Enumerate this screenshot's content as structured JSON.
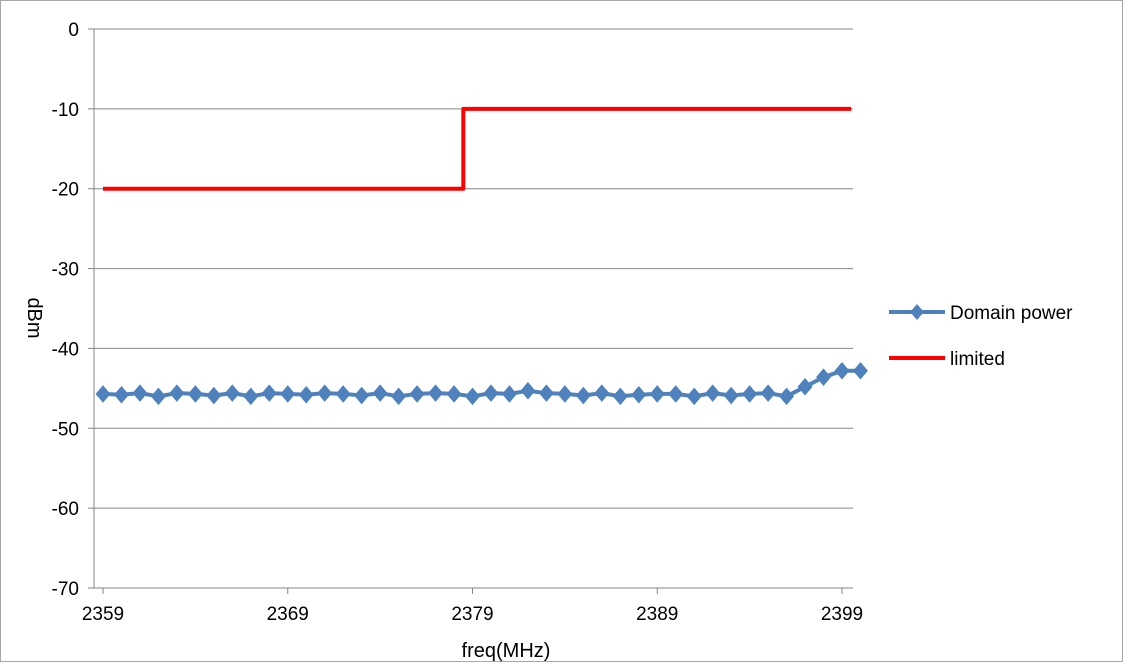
{
  "chart_data": {
    "type": "line",
    "title": "",
    "xlabel": "freq(MHz)",
    "ylabel": "dBm",
    "xlim": [
      2359,
      2399.5
    ],
    "ylim": [
      -70,
      0
    ],
    "x_ticks": [
      2359,
      2369,
      2379,
      2389,
      2399
    ],
    "y_ticks": [
      0,
      -10,
      -20,
      -30,
      -40,
      -50,
      -60,
      -70
    ],
    "grid": "horizontal",
    "legend_position": "right",
    "series": [
      {
        "name": "Domain power",
        "color": "#4f81bd",
        "marker": "diamond",
        "x": [
          2359,
          2360,
          2361,
          2362,
          2363,
          2364,
          2365,
          2366,
          2367,
          2368,
          2369,
          2370,
          2371,
          2372,
          2373,
          2374,
          2375,
          2376,
          2377,
          2378,
          2379,
          2380,
          2381,
          2382,
          2383,
          2384,
          2385,
          2386,
          2387,
          2388,
          2389,
          2390,
          2391,
          2392,
          2393,
          2394,
          2395,
          2396,
          2397,
          2398,
          2399,
          2400
        ],
        "values": [
          -45.7,
          -45.8,
          -45.6,
          -46.0,
          -45.6,
          -45.7,
          -45.9,
          -45.6,
          -46.0,
          -45.6,
          -45.7,
          -45.8,
          -45.6,
          -45.7,
          -45.9,
          -45.6,
          -46.0,
          -45.7,
          -45.6,
          -45.7,
          -46.0,
          -45.6,
          -45.7,
          -45.3,
          -45.6,
          -45.7,
          -45.9,
          -45.6,
          -46.0,
          -45.8,
          -45.7,
          -45.7,
          -46.0,
          -45.6,
          -45.9,
          -45.7,
          -45.6,
          -46.0,
          -44.8,
          -43.6,
          -42.8,
          -42.8
        ]
      },
      {
        "name": "limited",
        "color": "#ff0000",
        "marker": "none",
        "x": [
          2359,
          2378.5,
          2378.5,
          2399.5
        ],
        "values": [
          -20,
          -20,
          -10,
          -10
        ]
      }
    ]
  }
}
